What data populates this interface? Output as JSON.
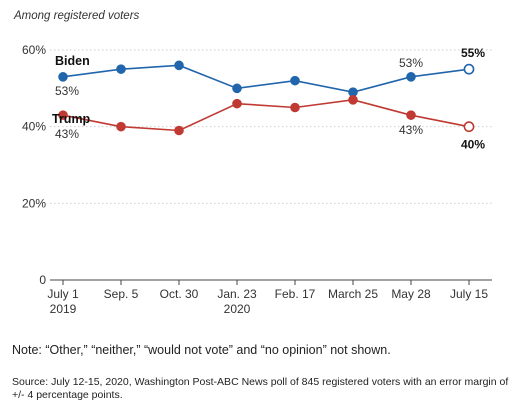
{
  "chart_data": {
    "type": "line",
    "subtitle": "Among registered voters",
    "x": [
      "July 1\n2019",
      "Sep. 5",
      "Oct. 30",
      "Jan. 23\n2020",
      "Feb. 17",
      "March 25",
      "May 28",
      "July 15"
    ],
    "series": [
      {
        "name": "Biden",
        "color": "#2166ac",
        "values": [
          53,
          55,
          56,
          50,
          52,
          49,
          53,
          55
        ]
      },
      {
        "name": "Trump",
        "color": "#c03a33",
        "values": [
          43,
          40,
          39,
          46,
          45,
          47,
          43,
          40
        ]
      }
    ],
    "yticks": [
      0,
      20,
      40,
      60
    ],
    "ytick_labels": [
      "0",
      "20%",
      "40%",
      "60%"
    ],
    "ylim": [
      0,
      60
    ],
    "grid": true,
    "data_labels": [
      {
        "series": 0,
        "index": 0,
        "text": "53%"
      },
      {
        "series": 1,
        "index": 0,
        "text": "43%"
      },
      {
        "series": 0,
        "index": 6,
        "text": "53%"
      },
      {
        "series": 1,
        "index": 6,
        "text": "43%"
      },
      {
        "series": 0,
        "index": 7,
        "text": "55%"
      },
      {
        "series": 1,
        "index": 7,
        "text": "40%"
      }
    ]
  },
  "note": "Note: “Other,” “neither,” “would not vote” and “no opinion” not shown.",
  "source": "Source: July 12-15, 2020, Washington Post-ABC News poll of 845 registered voters with an error margin of +/- 4 percentage points."
}
